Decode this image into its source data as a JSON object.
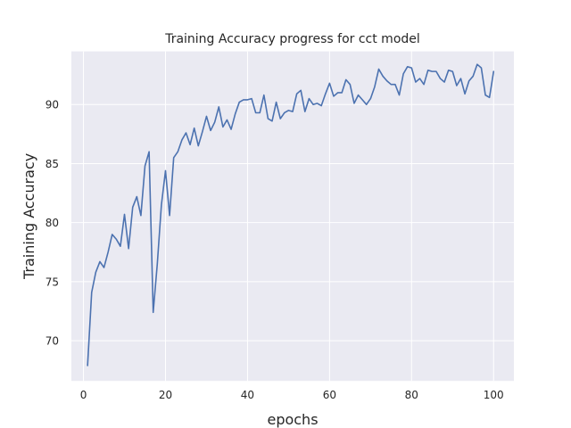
{
  "chart_data": {
    "type": "line",
    "title": "Training Accuracy progress for cct model",
    "xlabel": "epochs",
    "ylabel": "Training Accuracy",
    "xlim": [
      -2.95,
      104.95
    ],
    "ylim": [
      66.6,
      94.5
    ],
    "xticks": [
      0,
      20,
      40,
      60,
      80,
      100
    ],
    "yticks": [
      70,
      75,
      80,
      85,
      90
    ],
    "grid": true,
    "background": "#eaeaf2",
    "line_color": "#4c72b0",
    "series": [
      {
        "x": [
          1,
          2,
          3,
          4,
          5,
          6,
          7,
          8,
          9,
          10,
          11,
          12,
          13,
          14,
          15,
          16,
          17,
          18,
          19,
          20,
          21,
          22,
          23,
          24,
          25,
          26,
          27,
          28,
          29,
          30,
          31,
          32,
          33,
          34,
          35,
          36,
          37,
          38,
          39,
          40,
          41,
          42,
          43,
          44,
          45,
          46,
          47,
          48,
          49,
          50,
          51,
          52,
          53,
          54,
          55,
          56,
          57,
          58,
          59,
          60,
          61,
          62,
          63,
          64,
          65,
          66,
          67,
          68,
          69,
          70,
          71,
          72,
          73,
          74,
          75,
          76,
          77,
          78,
          79,
          80,
          81,
          82,
          83,
          84,
          85,
          86,
          87,
          88,
          89,
          90,
          91,
          92,
          93,
          94,
          95,
          96,
          97,
          98,
          99,
          100
        ],
        "values": [
          67.9,
          74.1,
          75.8,
          76.7,
          76.2,
          77.5,
          79.0,
          78.6,
          78.0,
          80.7,
          77.8,
          81.3,
          82.2,
          80.6,
          84.8,
          86.0,
          72.4,
          76.5,
          81.5,
          84.4,
          80.6,
          85.5,
          86.0,
          87.0,
          87.6,
          86.6,
          88.0,
          86.5,
          87.7,
          89.0,
          87.8,
          88.5,
          89.8,
          88.1,
          88.7,
          87.9,
          89.2,
          90.2,
          90.4,
          90.4,
          90.5,
          89.3,
          89.3,
          90.8,
          88.8,
          88.6,
          90.2,
          88.8,
          89.3,
          89.5,
          89.4,
          90.9,
          91.2,
          89.4,
          90.5,
          90.0,
          90.1,
          89.9,
          90.9,
          91.8,
          90.7,
          91.0,
          91.0,
          92.1,
          91.7,
          90.1,
          90.8,
          90.4,
          90.0,
          90.5,
          91.5,
          93.0,
          92.4,
          92.0,
          91.7,
          91.7,
          90.8,
          92.6,
          93.2,
          93.1,
          91.9,
          92.2,
          91.7,
          92.9,
          92.8,
          92.8,
          92.2,
          91.9,
          92.9,
          92.8,
          91.6,
          92.2,
          90.9,
          92.0,
          92.4,
          93.4,
          93.1,
          90.8,
          90.6,
          92.8
        ]
      }
    ]
  }
}
